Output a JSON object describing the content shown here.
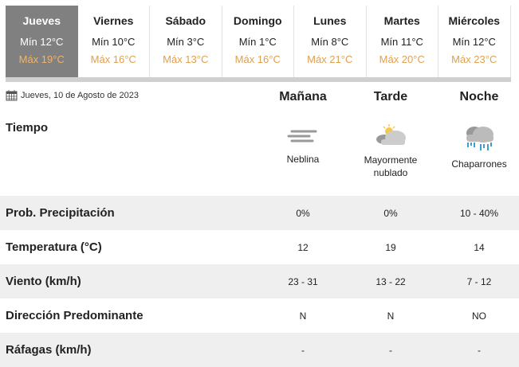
{
  "days": [
    {
      "day": "Jueves",
      "min": "Mín 12°C",
      "max": "Máx 19°C",
      "active": true
    },
    {
      "day": "Viernes",
      "min": "Mín 10°C",
      "max": "Máx 16°C"
    },
    {
      "day": "Sábado",
      "min": "Mín 3°C",
      "max": "Máx 13°C"
    },
    {
      "day": "Domingo",
      "min": "Mín 1°C",
      "max": "Máx 16°C"
    },
    {
      "day": "Lunes",
      "min": "Mín 8°C",
      "max": "Máx 21°C"
    },
    {
      "day": "Martes",
      "min": "Mín 11°C",
      "max": "Máx 20°C"
    },
    {
      "day": "Miércoles",
      "min": "Mín 12°C",
      "max": "Máx 23°C"
    }
  ],
  "date": "Jueves, 10 de Agosto de 2023",
  "columns": [
    "Mañana",
    "Tarde",
    "Noche"
  ],
  "weather": {
    "label": "Tiempo",
    "items": [
      {
        "text": "Neblina",
        "icon": "fog-icon"
      },
      {
        "text": "Mayormente nublado",
        "icon": "mostly-cloudy-icon"
      },
      {
        "text": "Chaparrones",
        "icon": "showers-icon"
      }
    ]
  },
  "rows": [
    {
      "label": "Prob. Precipitación",
      "values": [
        "0%",
        "0%",
        "10 - 40%"
      ]
    },
    {
      "label": "Temperatura (°C)",
      "values": [
        "12",
        "19",
        "14"
      ]
    },
    {
      "label": "Viento (km/h)",
      "values": [
        "23 - 31",
        "13 - 22",
        "7 - 12"
      ]
    },
    {
      "label": "Dirección Predominante",
      "values": [
        "N",
        "N",
        "NO"
      ]
    },
    {
      "label": "Ráfagas (km/h)",
      "values": [
        "-",
        "-",
        "-"
      ]
    }
  ],
  "colors": {
    "active_tab": "#808080",
    "max_temp": "#e0a050",
    "row_alt": "#efefef"
  }
}
